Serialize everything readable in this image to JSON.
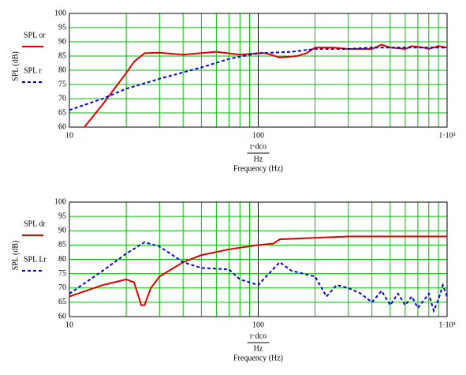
{
  "chart_data": [
    {
      "type": "line",
      "ylabel": "SPL (dB)",
      "xlabel_numerator": "r·dco",
      "xlabel_denominator": "Hz",
      "xlabel": "Frequency (Hz)",
      "log_x": true,
      "grid": true,
      "grid_color": "#00c000",
      "xlim": [
        10,
        1000
      ],
      "xticks": [
        10,
        100,
        {
          "value": 1000,
          "label": "1·10³"
        }
      ],
      "xminor": [
        20,
        30,
        40,
        50,
        60,
        70,
        80,
        90,
        200,
        300,
        400,
        500,
        600,
        700,
        800,
        900
      ],
      "ylim": [
        60,
        100
      ],
      "yticks": [
        60,
        65,
        70,
        75,
        80,
        85,
        90,
        95,
        100
      ],
      "series": [
        {
          "name": "SPL or",
          "color": "#e00000",
          "dash": false,
          "x": [
            12,
            15,
            18,
            20,
            22,
            25,
            30,
            40,
            60,
            80,
            100,
            110,
            130,
            160,
            180,
            200,
            250,
            300,
            400,
            450,
            500,
            600,
            650,
            750,
            800,
            900,
            1000
          ],
          "values": [
            60,
            68,
            75,
            79,
            83,
            86,
            86.2,
            85.5,
            86.5,
            85.5,
            86,
            86,
            84.5,
            85,
            86,
            88,
            88,
            87.5,
            87.5,
            89,
            88,
            87.5,
            88.5,
            88,
            87.5,
            88.5,
            88
          ]
        },
        {
          "name": "SPL r",
          "color": "#0000e0",
          "dash": true,
          "x": [
            10,
            15,
            20,
            30,
            50,
            70,
            100,
            150,
            200,
            300,
            400,
            600,
            800,
            1000
          ],
          "values": [
            66,
            70,
            73.5,
            77,
            81,
            84,
            86,
            86.5,
            87.5,
            87.5,
            88,
            88,
            88,
            88
          ]
        }
      ]
    },
    {
      "type": "line",
      "ylabel": "SPL (dB)",
      "xlabel_numerator": "r·dco",
      "xlabel_denominator": "Hz",
      "xlabel": "Frequency (Hz)",
      "log_x": true,
      "grid": true,
      "grid_color": "#00c000",
      "xlim": [
        10,
        1000
      ],
      "xticks": [
        10,
        100,
        {
          "value": 1000,
          "label": "1·10³"
        }
      ],
      "xminor": [
        20,
        30,
        40,
        50,
        60,
        70,
        80,
        90,
        200,
        300,
        400,
        500,
        600,
        700,
        800,
        900
      ],
      "ylim": [
        60,
        100
      ],
      "yticks": [
        60,
        65,
        70,
        75,
        80,
        85,
        90,
        95,
        100
      ],
      "series": [
        {
          "name": "SPL dr",
          "color": "#e00000",
          "dash": false,
          "x": [
            10,
            15,
            20,
            22,
            24,
            25,
            27,
            30,
            40,
            50,
            70,
            100,
            120,
            130,
            200,
            300,
            500,
            1000
          ],
          "values": [
            67,
            71,
            73,
            72,
            64,
            64,
            70,
            74,
            79,
            81.5,
            83.5,
            85,
            85.5,
            87,
            87.5,
            88,
            88,
            88
          ]
        },
        {
          "name": "SPL Lr",
          "color": "#0000e0",
          "dash": true,
          "x": [
            10,
            15,
            20,
            25,
            30,
            40,
            50,
            70,
            80,
            100,
            110,
            130,
            150,
            200,
            230,
            260,
            300,
            350,
            400,
            450,
            500,
            550,
            600,
            650,
            700,
            800,
            850,
            900,
            950,
            1000
          ],
          "values": [
            68,
            76,
            82,
            86,
            84.5,
            79,
            77,
            76.5,
            73,
            71,
            74,
            79,
            76,
            74,
            67,
            71,
            70,
            68,
            65,
            69,
            64,
            68,
            64,
            67,
            63,
            68,
            62,
            66,
            71,
            67
          ]
        }
      ]
    }
  ]
}
